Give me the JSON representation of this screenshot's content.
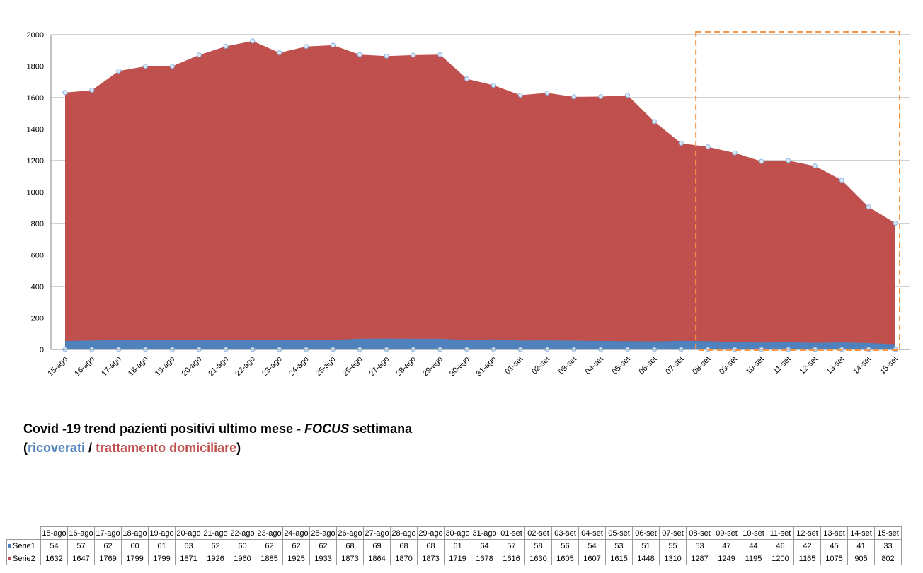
{
  "caption": {
    "line1_prefix": "Covid -19 trend pazienti positivi ultimo mese - ",
    "line1_focus": "FOCUS",
    "line1_suffix": " settimana",
    "paren_open": "(",
    "blue_text": "ricoverati",
    "slash": " / ",
    "red_text": "trattamento domiciliare",
    "paren_close": ")"
  },
  "colors": {
    "serie1": "#4f81bd",
    "serie2": "#c0504d",
    "markers": "#8cb4e0",
    "focus_box": "#f79646",
    "grid": "#a6a6a6"
  },
  "chart_data": {
    "type": "area",
    "stacked": false,
    "categories": [
      "15-ago",
      "16-ago",
      "17-ago",
      "18-ago",
      "19-ago",
      "20-ago",
      "21-ago",
      "22-ago",
      "23-ago",
      "24-ago",
      "25-ago",
      "26-ago",
      "27-ago",
      "28-ago",
      "29-ago",
      "30-ago",
      "31-ago",
      "01-set",
      "02-set",
      "03-set",
      "04-set",
      "05-set",
      "06-set",
      "07-set",
      "08-set",
      "09-set",
      "10-set",
      "11-set",
      "12-set",
      "13-set",
      "14-set",
      "15-set"
    ],
    "series": [
      {
        "name": "Serie1",
        "color": "#4f81bd",
        "values": [
          54,
          57,
          62,
          60,
          61,
          63,
          62,
          60,
          62,
          62,
          62,
          68,
          69,
          68,
          68,
          61,
          64,
          57,
          58,
          56,
          54,
          53,
          51,
          55,
          53,
          47,
          44,
          46,
          42,
          45,
          41,
          33
        ]
      },
      {
        "name": "Serie2",
        "color": "#c0504d",
        "values": [
          1632,
          1647,
          1769,
          1799,
          1799,
          1871,
          1926,
          1960,
          1885,
          1925,
          1933,
          1873,
          1864,
          1870,
          1873,
          1719,
          1678,
          1616,
          1630,
          1605,
          1607,
          1615,
          1448,
          1310,
          1287,
          1249,
          1195,
          1200,
          1165,
          1075,
          905,
          802
        ]
      }
    ],
    "ylim": [
      0,
      2000
    ],
    "yticks": [
      0,
      200,
      400,
      600,
      800,
      1000,
      1200,
      1400,
      1600,
      1800,
      2000
    ],
    "grid": true,
    "focus_range": [
      "08-set",
      "15-set"
    ],
    "legend": "data-table-bottom"
  }
}
